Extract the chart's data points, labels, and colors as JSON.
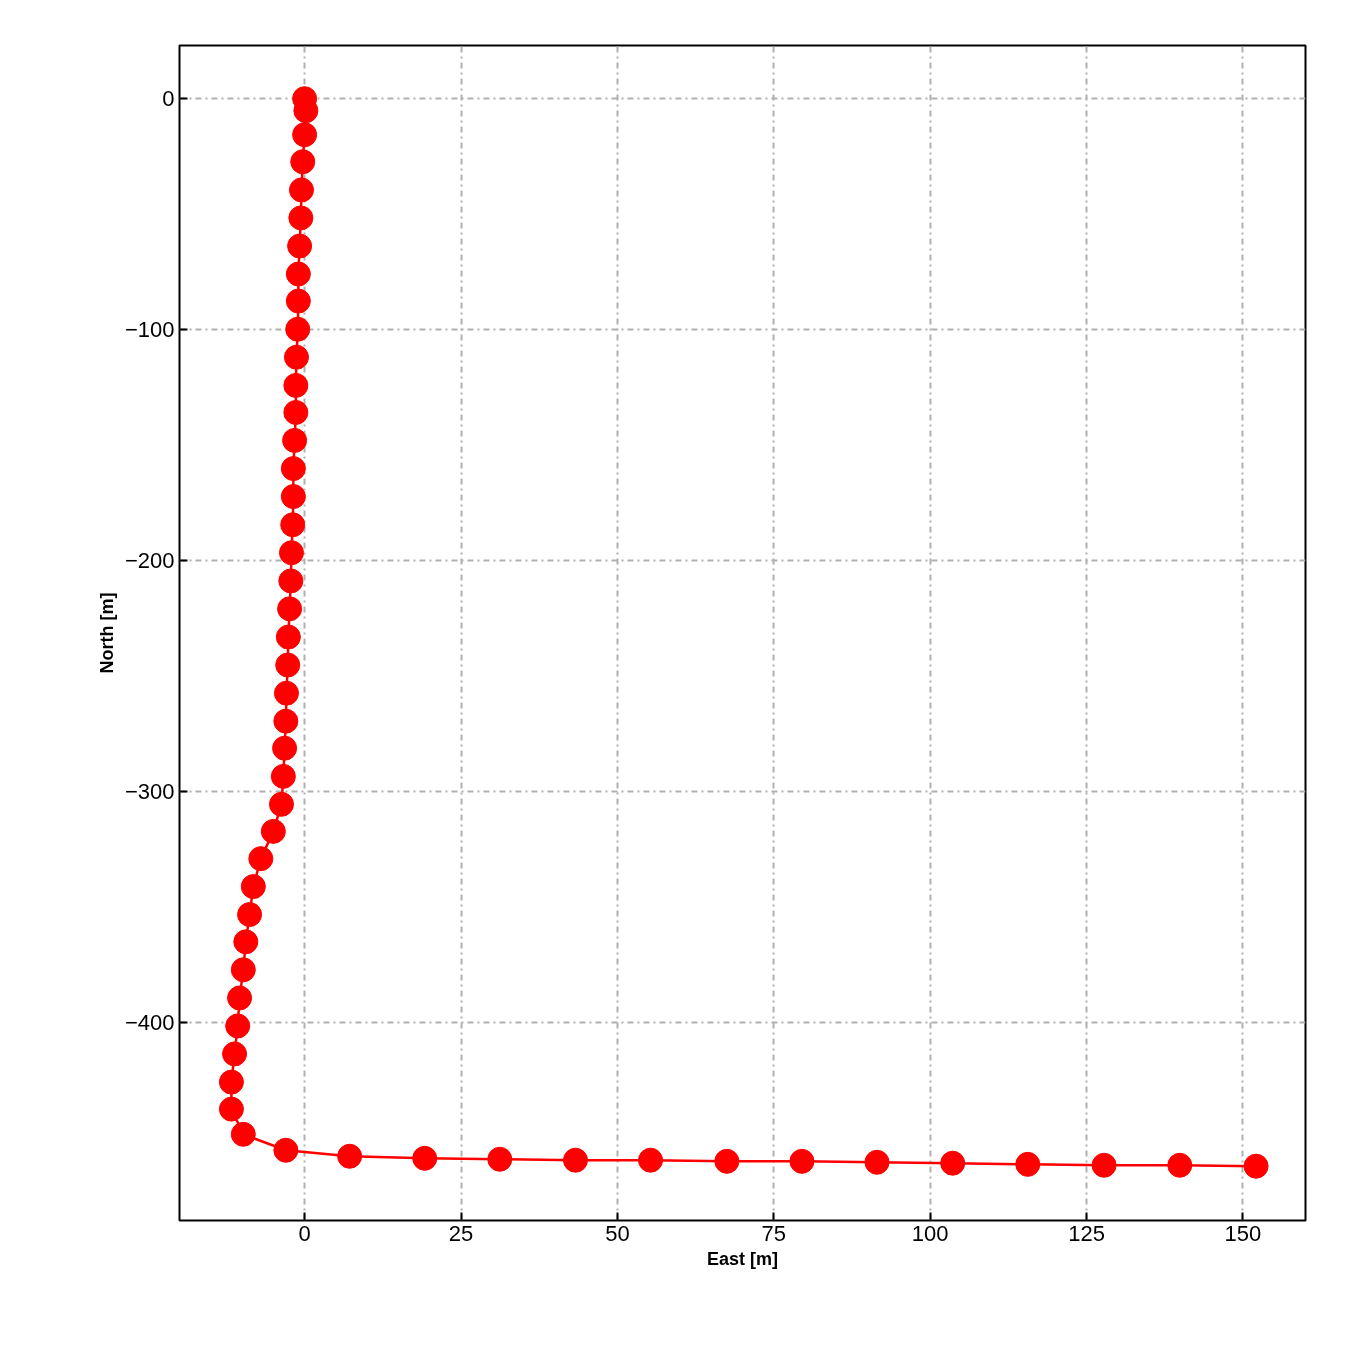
{
  "chart_data": {
    "type": "line",
    "xlabel": "East [m]",
    "ylabel": "North [m]",
    "xlim": [
      -20,
      160
    ],
    "ylim": [
      -485.5,
      23
    ],
    "xticks": [
      0,
      25,
      50,
      75,
      100,
      125,
      150
    ],
    "yticks": [
      0,
      -100,
      -200,
      -300,
      -400
    ],
    "grid": true,
    "marker": "circle",
    "line_style": "solid",
    "series": [
      {
        "color": "#ff0000",
        "x": [
          0,
          0.2,
          0,
          -0.3,
          -0.5,
          -0.6,
          -0.8,
          -1.0,
          -1.0,
          -1.1,
          -1.3,
          -1.4,
          -1.4,
          -1.6,
          -1.8,
          -1.8,
          -1.9,
          -2.1,
          -2.2,
          -2.4,
          -2.6,
          -2.7,
          -2.9,
          -3.0,
          -3.2,
          -3.4,
          -3.7,
          -5.0,
          -7.0,
          -8.2,
          -8.8,
          -9.4,
          -9.8,
          -10.4,
          -10.7,
          -11.2,
          -11.7,
          -11.7,
          -9.8,
          -3.0,
          7.2,
          19.2,
          31.2,
          43.3,
          55.3,
          67.5,
          79.5,
          91.5,
          103.6,
          115.6,
          127.8,
          139.9,
          152.1
        ],
        "values": [
          0,
          -5.2,
          -15.6,
          -27.3,
          -39.5,
          -51.6,
          -63.8,
          -75.9,
          -87.6,
          -99.8,
          -111.9,
          -124.1,
          -135.8,
          -147.9,
          -160.1,
          -172.2,
          -184.4,
          -196.5,
          -208.7,
          -220.8,
          -233.0,
          -245.1,
          -257.3,
          -269.4,
          -281.1,
          -293.3,
          -305.4,
          -317.1,
          -328.9,
          -341.0,
          -353.1,
          -364.9,
          -377.0,
          -389.2,
          -401.3,
          -413.4,
          -425.6,
          -437.3,
          -448.2,
          -455.1,
          -457.7,
          -458.6,
          -459.0,
          -459.4,
          -459.4,
          -459.9,
          -459.9,
          -460.3,
          -460.7,
          -461.2,
          -461.6,
          -461.6,
          -462.0
        ]
      }
    ]
  }
}
